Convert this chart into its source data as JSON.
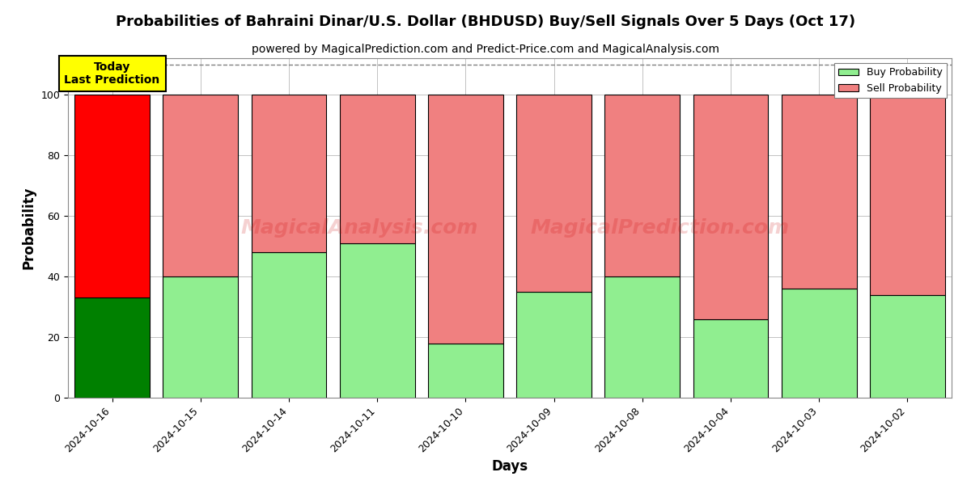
{
  "title": "Probabilities of Bahraini Dinar/U.S. Dollar (BHDUSD) Buy/Sell Signals Over 5 Days (Oct 17)",
  "subtitle": "powered by MagicalPrediction.com and Predict-Price.com and MagicalAnalysis.com",
  "xlabel": "Days",
  "ylabel": "Probability",
  "categories": [
    "2024-10-16",
    "2024-10-15",
    "2024-10-14",
    "2024-10-11",
    "2024-10-10",
    "2024-10-09",
    "2024-10-08",
    "2024-10-04",
    "2024-10-03",
    "2024-10-02"
  ],
  "buy_values": [
    33,
    40,
    48,
    51,
    18,
    35,
    40,
    26,
    36,
    34
  ],
  "sell_values": [
    67,
    60,
    52,
    49,
    82,
    65,
    60,
    74,
    64,
    66
  ],
  "buy_color_today": "#008000",
  "sell_color_today": "#ff0000",
  "buy_color_other": "#90ee90",
  "sell_color_other": "#f08080",
  "bar_edge_color": "#000000",
  "bar_width": 0.85,
  "ylim": [
    0,
    112
  ],
  "yticks": [
    0,
    20,
    40,
    60,
    80,
    100
  ],
  "dashed_line_y": 110,
  "annotation_text": "Today\nLast Prediction",
  "annotation_color": "#ffff00",
  "legend_buy_label": "Buy Probability",
  "legend_sell_label": "Sell Probability",
  "grid_color": "#aaaaaa",
  "background_color": "#ffffff",
  "title_fontsize": 13,
  "subtitle_fontsize": 10,
  "axis_label_fontsize": 12,
  "tick_fontsize": 9
}
